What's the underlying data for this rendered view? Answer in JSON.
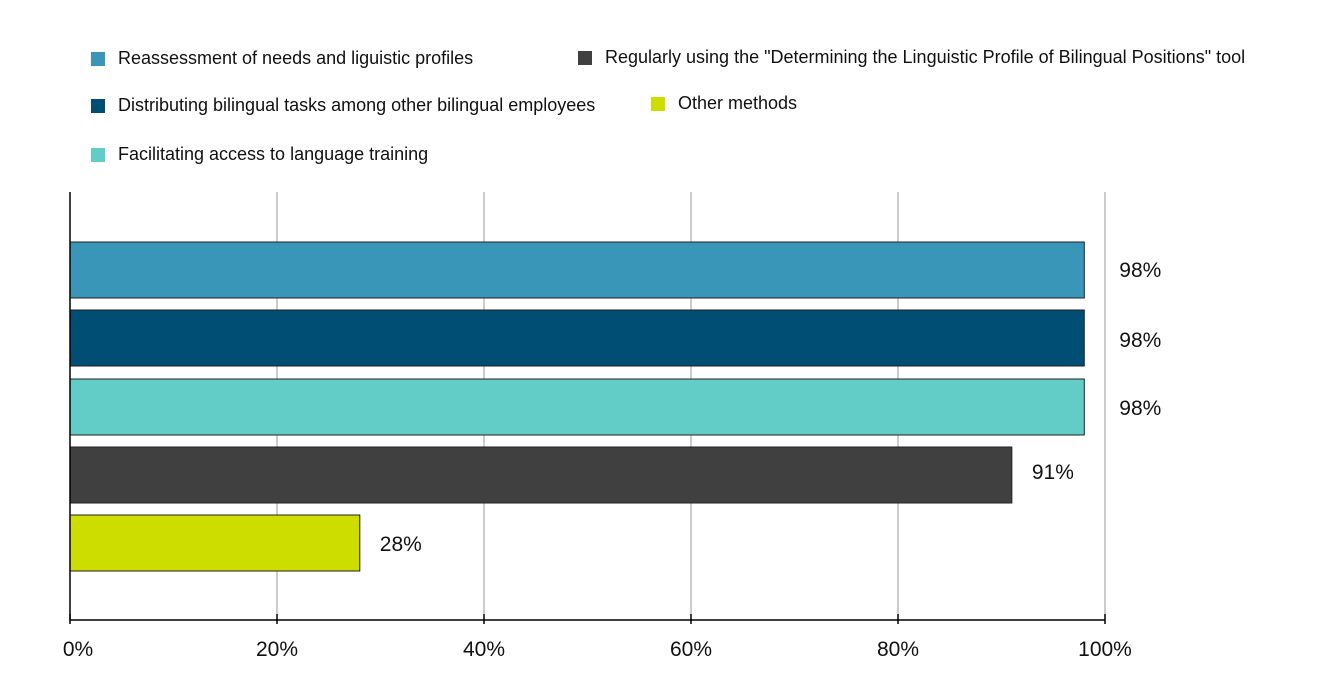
{
  "chart_data": {
    "type": "bar",
    "orientation": "horizontal",
    "title": "",
    "xlabel": "",
    "ylabel": "",
    "xlim": [
      0,
      100
    ],
    "grid": true,
    "legend_position": "top",
    "x_ticks": [
      "0%",
      "20%",
      "40%",
      "60%",
      "80%",
      "100%"
    ],
    "x_tick_values": [
      0,
      20,
      40,
      60,
      80,
      100
    ],
    "series": [
      {
        "name": "Reassessment of needs and liguistic profiles",
        "value": 98,
        "label": "98%",
        "color": "#3a96b8"
      },
      {
        "name": "Distributing bilingual tasks among other bilingual employees",
        "value": 98,
        "label": "98%",
        "color": "#004e73"
      },
      {
        "name": "Facilitating access to language training",
        "value": 98,
        "label": "98%",
        "color": "#62cdc7"
      },
      {
        "name": "Regularly using the \"Determining the Linguistic Profile of Bilingual Positions\" tool",
        "value": 91,
        "label": "91%",
        "color": "#404040"
      },
      {
        "name": "Other methods",
        "value": 28,
        "label": "28%",
        "color": "#cedd00"
      }
    ]
  }
}
